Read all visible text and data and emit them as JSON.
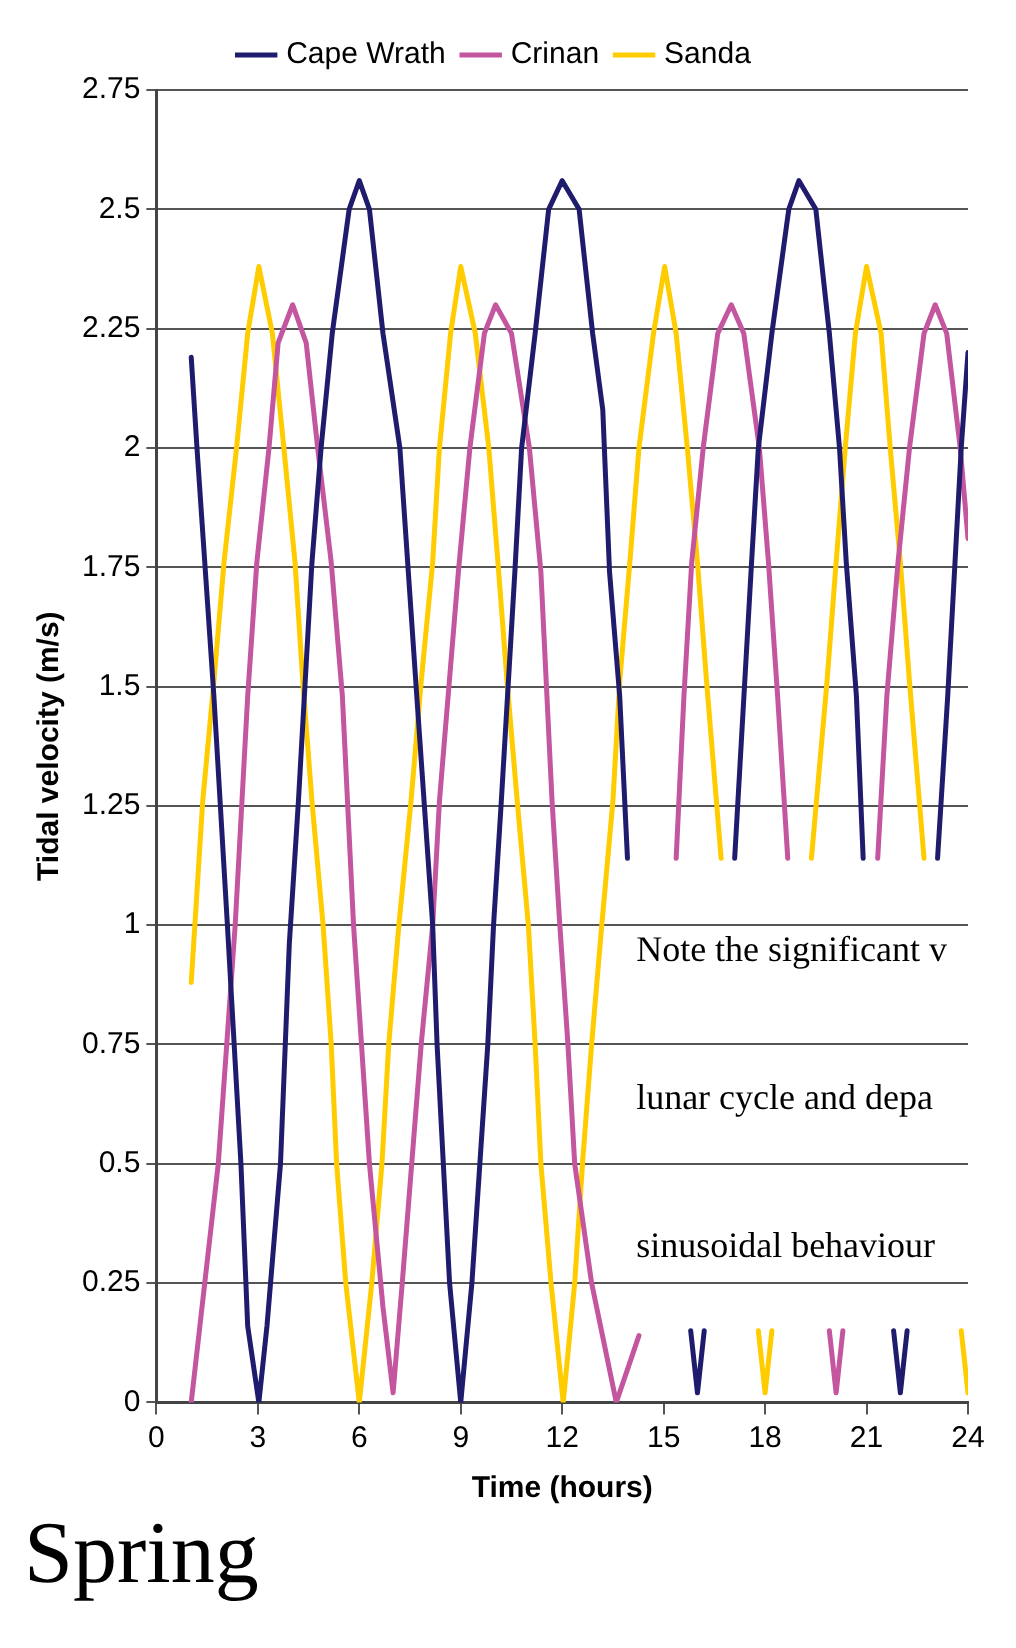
{
  "chart_data": {
    "type": "line",
    "title": "Spring",
    "xlabel": "Time (hours)",
    "ylabel": "Tidal velocity (m/s)",
    "xlim": [
      0,
      24
    ],
    "xticks": [
      0,
      3,
      6,
      9,
      12,
      15,
      18,
      21,
      24
    ],
    "ylim": [
      0,
      2.75
    ],
    "yticks": [
      0,
      0.25,
      0.5,
      0.75,
      1,
      1.25,
      1.5,
      1.75,
      2,
      2.25,
      2.5,
      2.75
    ],
    "grid": "y",
    "legend": "top",
    "marker": "none",
    "line_style": "solid",
    "annotations": [
      "Note the significant v",
      "lunar cycle and depa",
      "sinusoidal behaviour"
    ],
    "series": [
      {
        "name": "Cape Wrath",
        "color": "#1f1c6e",
        "x": [
          1.03,
          1.2,
          1.7,
          2.1,
          2.5,
          2.7,
          3.03,
          3.27,
          3.67,
          3.93,
          4.2,
          4.6,
          4.87,
          5.2,
          5.7,
          6.0,
          6.3,
          6.7,
          7.2,
          7.7,
          8.17,
          8.3,
          8.67,
          9.0,
          9.33,
          9.8,
          9.97,
          10.2,
          10.6,
          10.8,
          11.2,
          11.6,
          12.0,
          12.5,
          12.9,
          13.2,
          13.4,
          13.7,
          13.93,
          14.5,
          15.8,
          16.0,
          16.2,
          16.6,
          17.1,
          17.6,
          17.8,
          18.2,
          18.7,
          19.0,
          19.5,
          19.9,
          20.2,
          20.4,
          20.7,
          20.9,
          21.4,
          21.8,
          22.0,
          22.2,
          22.7,
          23.1,
          23.4,
          23.8,
          24.0
        ],
        "values": [
          2.19,
          2.0,
          1.48,
          1.0,
          0.5,
          0.16,
          0.0,
          0.16,
          0.5,
          0.96,
          1.26,
          1.76,
          2.0,
          2.24,
          2.5,
          2.56,
          2.5,
          2.24,
          2.0,
          1.48,
          1.0,
          0.75,
          0.25,
          0.0,
          0.25,
          0.75,
          1.0,
          1.26,
          1.74,
          2.0,
          2.24,
          2.5,
          2.56,
          2.5,
          2.24,
          2.08,
          1.74,
          1.48,
          1.14,
          null,
          0.15,
          0.02,
          0.15,
          null,
          1.14,
          1.76,
          2.0,
          2.24,
          2.5,
          2.56,
          2.5,
          2.24,
          2.0,
          1.76,
          1.48,
          1.14,
          null,
          0.15,
          0.02,
          0.15,
          null,
          1.14,
          1.48,
          2.0,
          2.2
        ]
      },
      {
        "name": "Crinan",
        "color": "#c4559f",
        "x": [
          1.03,
          1.83,
          2.33,
          2.7,
          2.97,
          3.33,
          3.6,
          4.03,
          4.43,
          4.77,
          5.17,
          5.5,
          5.83,
          6.3,
          6.7,
          7.0,
          7.27,
          7.83,
          8.17,
          8.37,
          8.93,
          9.27,
          9.7,
          10.03,
          10.5,
          11.03,
          11.37,
          11.7,
          11.93,
          12.17,
          12.37,
          12.87,
          13.6,
          14.27,
          14.8,
          15.37,
          15.6,
          15.83,
          16.17,
          16.6,
          17.0,
          17.37,
          17.83,
          18.1,
          18.37,
          18.67,
          19.3,
          19.9,
          20.1,
          20.3,
          20.8,
          21.33,
          21.6,
          21.93,
          22.27,
          22.7,
          23.03,
          23.37,
          23.77,
          24.0
        ],
        "values": [
          0.0,
          0.5,
          1.0,
          1.48,
          1.76,
          2.0,
          2.22,
          2.3,
          2.22,
          2.0,
          1.76,
          1.48,
          1.0,
          0.5,
          0.2,
          0.02,
          0.25,
          0.75,
          1.0,
          1.26,
          1.74,
          2.0,
          2.24,
          2.3,
          2.24,
          2.0,
          1.74,
          1.26,
          1.0,
          0.75,
          0.5,
          0.25,
          0.0,
          0.14,
          null,
          1.14,
          1.48,
          1.76,
          2.0,
          2.24,
          2.3,
          2.24,
          2.0,
          1.76,
          1.48,
          1.14,
          null,
          0.15,
          0.02,
          0.15,
          null,
          1.14,
          1.48,
          1.76,
          2.0,
          2.24,
          2.3,
          2.24,
          2.0,
          1.81
        ]
      },
      {
        "name": "Sanda",
        "color": "#ffcc00",
        "x": [
          1.03,
          1.37,
          1.7,
          2.0,
          2.37,
          2.7,
          3.03,
          3.43,
          3.77,
          4.1,
          4.33,
          4.6,
          4.93,
          5.17,
          5.33,
          5.6,
          6.0,
          6.37,
          6.67,
          6.87,
          7.17,
          7.53,
          7.83,
          8.17,
          8.37,
          8.7,
          9.0,
          9.43,
          9.83,
          10.1,
          10.37,
          10.67,
          11.0,
          11.2,
          11.37,
          11.67,
          12.03,
          12.37,
          12.6,
          12.87,
          13.17,
          13.5,
          13.7,
          14.0,
          14.27,
          14.7,
          15.03,
          15.37,
          15.7,
          16.0,
          16.27,
          16.7,
          17.3,
          17.8,
          18.0,
          18.2,
          18.8,
          19.37,
          19.83,
          20.1,
          20.37,
          20.67,
          21.0,
          21.43,
          21.7,
          22.0,
          22.27,
          22.7,
          23.3,
          23.8,
          24.0
        ],
        "values": [
          0.88,
          1.26,
          1.51,
          1.76,
          2.0,
          2.24,
          2.38,
          2.24,
          2.0,
          1.76,
          1.51,
          1.26,
          1.0,
          0.75,
          0.5,
          0.25,
          0.0,
          0.25,
          0.5,
          0.75,
          1.0,
          1.26,
          1.51,
          1.76,
          2.0,
          2.24,
          2.38,
          2.24,
          2.0,
          1.76,
          1.51,
          1.26,
          1.0,
          0.75,
          0.5,
          0.25,
          0.0,
          0.25,
          0.5,
          0.75,
          1.0,
          1.26,
          1.51,
          1.76,
          2.0,
          2.24,
          2.38,
          2.24,
          2.0,
          1.76,
          1.51,
          1.14,
          null,
          0.15,
          0.02,
          0.15,
          null,
          1.14,
          1.51,
          1.76,
          2.0,
          2.24,
          2.38,
          2.24,
          2.0,
          1.76,
          1.51,
          1.14,
          null,
          0.15,
          0.02
        ]
      }
    ]
  }
}
